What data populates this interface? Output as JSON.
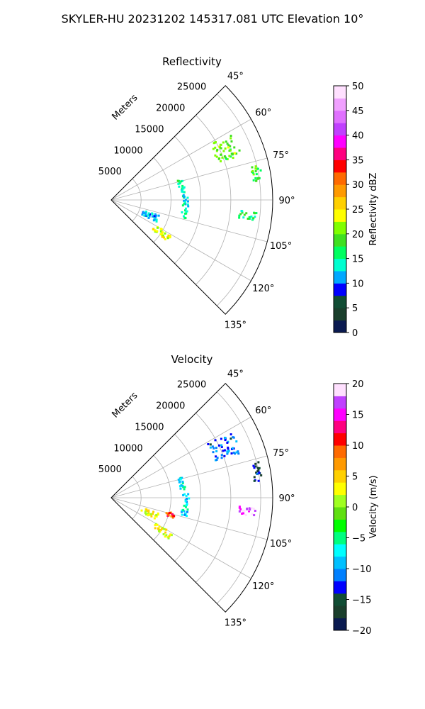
{
  "figure": {
    "suptitle": "SKYLER-HU  20231202  145317.081 UTC Elevation 10°"
  },
  "chart_data": [
    {
      "type": "scatter",
      "title": "Reflectivity",
      "radial_label": "Meters",
      "radial_ticks": [
        "5000",
        "10000",
        "15000",
        "20000",
        "25000"
      ],
      "radial_tick_values": [
        5000,
        10000,
        15000,
        20000,
        25000
      ],
      "rlim": [
        0,
        27000
      ],
      "azimuth_ticks": [
        "45°",
        "60°",
        "75°",
        "90°",
        "105°",
        "120°",
        "135°"
      ],
      "azimuth_tick_values": [
        45,
        60,
        75,
        90,
        105,
        120,
        135
      ],
      "azimuth_range": [
        45,
        135
      ],
      "grid": true,
      "colorbar": {
        "label": "Reflectivity dBZ",
        "range": [
          0,
          50
        ],
        "ticks": [
          "0",
          "5",
          "10",
          "15",
          "20",
          "25",
          "30",
          "35",
          "40",
          "45",
          "50"
        ],
        "colors": [
          "#0a1a50",
          "#1a3f2c",
          "#114d34",
          "#0000ff",
          "#00a8ff",
          "#00ffd0",
          "#00ff60",
          "#3fe020",
          "#80ff00",
          "#ffff00",
          "#ffd000",
          "#ff9a00",
          "#ff6a00",
          "#ff0000",
          "#ff0080",
          "#ff00ff",
          "#c040ff",
          "#e070ff",
          "#f0a0ff",
          "#ffe0ff"
        ]
      },
      "clusters": [
        {
          "az": [
            61,
            71
          ],
          "r": [
            18500,
            23000
          ],
          "value": 20
        },
        {
          "az": [
            76,
            84
          ],
          "r": [
            24000,
            25500
          ],
          "value": 18
        },
        {
          "az": [
            94,
            98
          ],
          "r": [
            21500,
            24500
          ],
          "value": 16
        },
        {
          "az": [
            74,
            84
          ],
          "r": [
            11500,
            12500
          ],
          "value": 15
        },
        {
          "az": [
            86,
            104
          ],
          "r": [
            12000,
            13000
          ],
          "value": 14
        },
        {
          "az": [
            108,
            116
          ],
          "r": [
            5500,
            8500
          ],
          "value": 12
        },
        {
          "az": [
            120,
            126
          ],
          "r": [
            8500,
            12000
          ],
          "value": 24
        }
      ]
    },
    {
      "type": "scatter",
      "title": "Velocity",
      "radial_label": "Meters",
      "radial_ticks": [
        "5000",
        "10000",
        "15000",
        "20000",
        "25000"
      ],
      "radial_tick_values": [
        5000,
        10000,
        15000,
        20000,
        25000
      ],
      "rlim": [
        0,
        27000
      ],
      "azimuth_ticks": [
        "45°",
        "60°",
        "75°",
        "90°",
        "105°",
        "120°",
        "135°"
      ],
      "azimuth_tick_values": [
        45,
        60,
        75,
        90,
        105,
        120,
        135
      ],
      "azimuth_range": [
        45,
        135
      ],
      "grid": true,
      "colorbar": {
        "label": "Velocity (m/s)",
        "range": [
          -20,
          20
        ],
        "ticks": [
          "−20",
          "−15",
          "−10",
          "−5",
          "0",
          "5",
          "10",
          "15",
          "20"
        ],
        "colors": [
          "#0a1a50",
          "#1a3f2c",
          "#114d34",
          "#0000ff",
          "#0080ff",
          "#00c0ff",
          "#00ffff",
          "#00ff80",
          "#00ff00",
          "#60e010",
          "#a0ff20",
          "#ffff00",
          "#ffd000",
          "#ff9a00",
          "#ff6a00",
          "#ff0000",
          "#ff0080",
          "#ff00ff",
          "#c040ff",
          "#ffe0ff"
        ]
      },
      "clusters": [
        {
          "az": [
            61,
            71
          ],
          "r": [
            18500,
            23000
          ],
          "value": -12
        },
        {
          "az": [
            76,
            84
          ],
          "r": [
            24000,
            25500
          ],
          "value": -14
        },
        {
          "az": [
            94,
            98
          ],
          "r": [
            21500,
            24500
          ],
          "value": 17
        },
        {
          "az": [
            74,
            84
          ],
          "r": [
            11500,
            12500
          ],
          "value": -7
        },
        {
          "az": [
            86,
            104
          ],
          "r": [
            12000,
            13000
          ],
          "value": -8
        },
        {
          "az": [
            108,
            116
          ],
          "r": [
            5500,
            8500
          ],
          "value": 3
        },
        {
          "az": [
            104,
            108
          ],
          "r": [
            9500,
            11000
          ],
          "value": 10
        },
        {
          "az": [
            120,
            126
          ],
          "r": [
            8500,
            12000
          ],
          "value": 3
        }
      ]
    }
  ]
}
